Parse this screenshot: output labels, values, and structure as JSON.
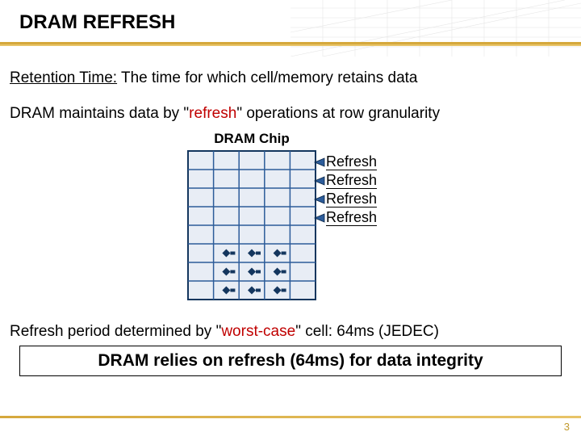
{
  "title": "DRAM REFRESH",
  "line1_underline": "Retention Time:",
  "line1_rest": " The time for which cell/memory retains data",
  "line2_a": "DRAM maintains data by \"",
  "line2_b_red": "refresh",
  "line2_c": "\" operations at row granularity",
  "chip_label": "DRAM Chip",
  "refresh_labels": [
    "Refresh",
    "Refresh",
    "Refresh",
    "Refresh"
  ],
  "line3_a": "Refresh period determined by \"",
  "line3_b_red": "worst-case",
  "line3_c": "\" cell: 64ms (JEDEC)",
  "conclusion": "DRAM relies on refresh (64ms) for data integrity",
  "page_number": "3",
  "colors": {
    "red": "#c00000",
    "grid_blue": "#2c5c9a",
    "chip_border": "#14365e",
    "chip_fill": "#e8edf5",
    "gold": "#d5a83c"
  },
  "chip": {
    "width": 160,
    "height": 186,
    "cols": 5,
    "rows": 8,
    "cell_rows": [
      5,
      6,
      7
    ],
    "cell_cols": [
      1,
      2,
      3
    ]
  }
}
